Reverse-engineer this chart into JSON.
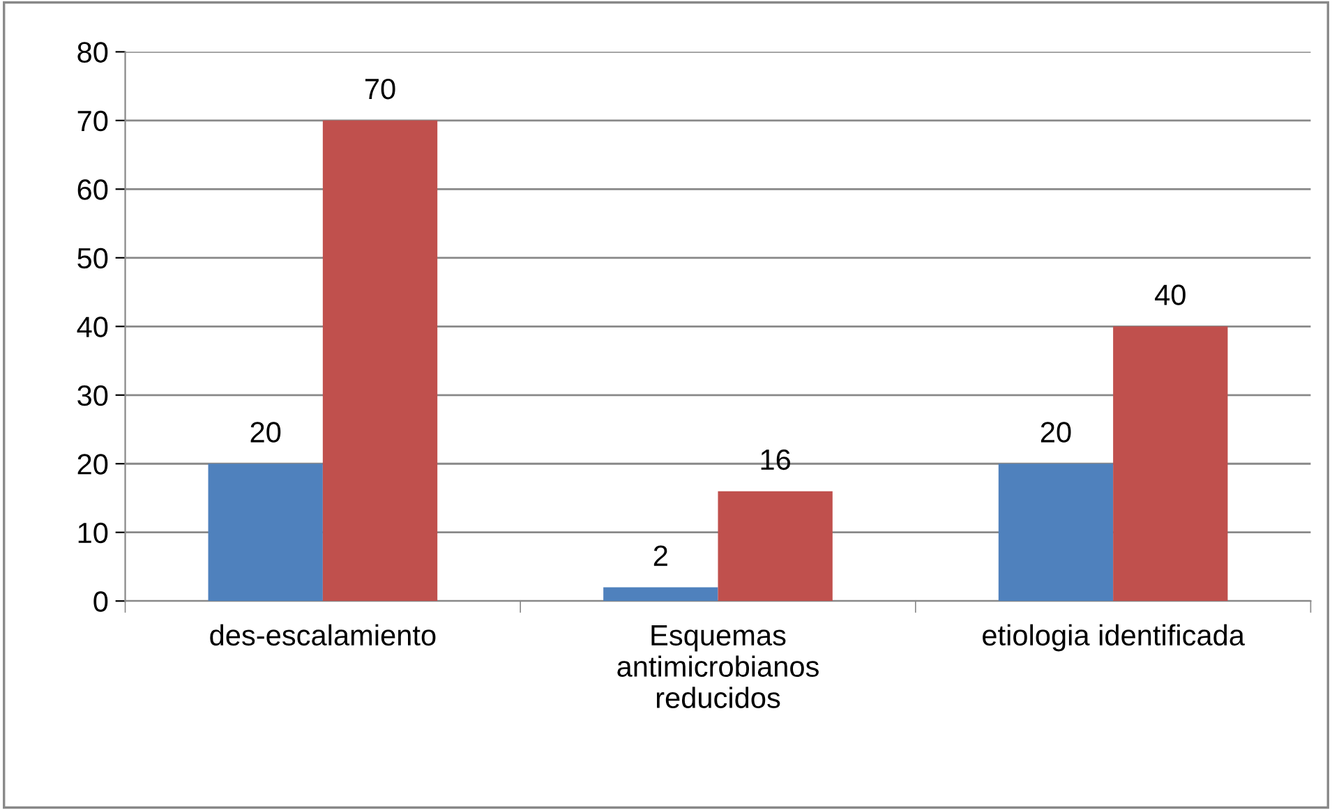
{
  "chart_data": {
    "type": "bar",
    "categories": [
      "des-escalamiento",
      "Esquemas antimicrobianos reducidos",
      "etiologia identificada"
    ],
    "series": [
      {
        "color": "#4f81bd",
        "values": [
          20,
          2,
          20
        ]
      },
      {
        "color": "#c0504d",
        "values": [
          70,
          16,
          40
        ]
      }
    ],
    "ylim": [
      0,
      80
    ],
    "yticks": [
      0,
      10,
      20,
      30,
      40,
      50,
      60,
      70,
      80
    ],
    "grid": "y",
    "data_labels": true,
    "legend": false
  }
}
